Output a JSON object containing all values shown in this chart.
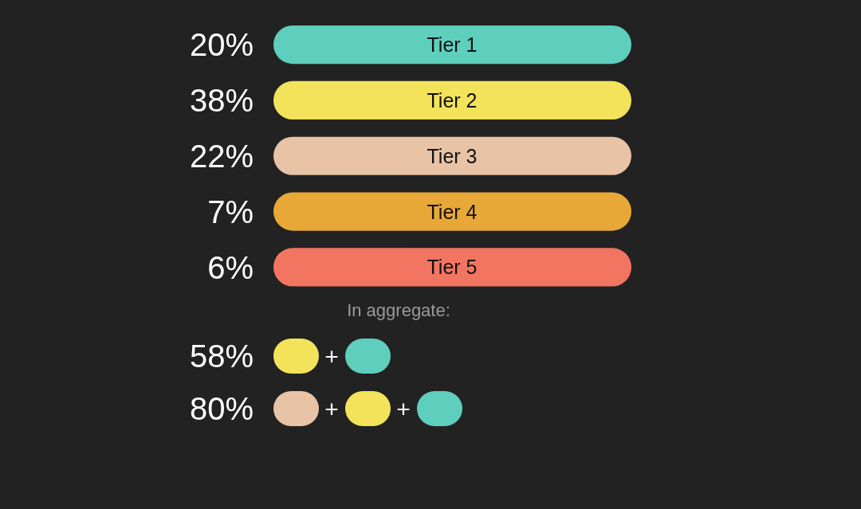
{
  "chart_data": {
    "type": "other",
    "categories": [
      "Tier 1",
      "Tier 2",
      "Tier 3",
      "Tier 4",
      "Tier 5"
    ],
    "values": [
      20,
      38,
      22,
      7,
      6
    ],
    "value_labels": [
      "20%",
      "38%",
      "22%",
      "7%",
      "6%"
    ],
    "colors": [
      "#5fcfbd",
      "#f2e35b",
      "#e8c3a5",
      "#e8a838",
      "#f27562"
    ],
    "annotations": [
      "In aggregate:",
      "58%",
      "+",
      "80%",
      "+",
      "+"
    ]
  }
}
